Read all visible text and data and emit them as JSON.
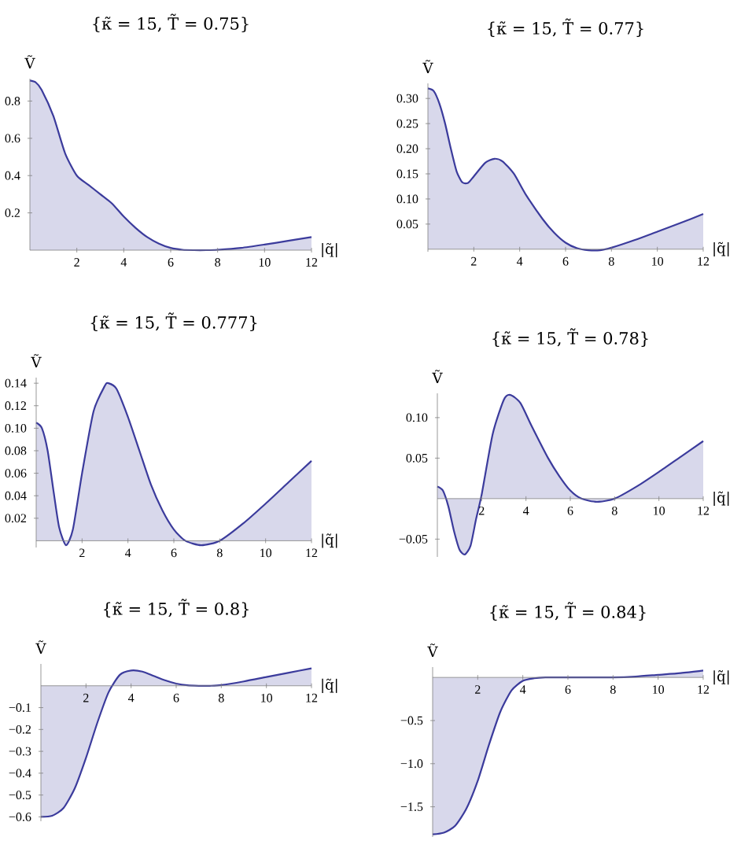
{
  "chart_data": [
    {
      "type": "area",
      "title": "{κ̃ = 15, T̃ = 0.75}",
      "xlabel": "|q̃|",
      "ylabel": "Ṽ",
      "color": "#3b3b9c",
      "xlim": [
        0,
        12
      ],
      "ylim": [
        0,
        0.92
      ],
      "xticks": [
        2,
        4,
        6,
        8,
        10,
        12
      ],
      "yticks": [
        0.2,
        0.4,
        0.6,
        0.8
      ],
      "x": [
        0,
        0.25,
        0.5,
        1,
        1.5,
        2,
        2.5,
        3,
        3.5,
        4,
        4.5,
        5,
        5.5,
        6,
        6.5,
        7,
        7.5,
        8,
        9,
        10,
        11,
        12
      ],
      "values": [
        0.91,
        0.9,
        0.86,
        0.72,
        0.52,
        0.4,
        0.35,
        0.3,
        0.25,
        0.18,
        0.12,
        0.07,
        0.035,
        0.012,
        0.002,
        0,
        0,
        0.002,
        0.012,
        0.03,
        0.05,
        0.07
      ]
    },
    {
      "type": "area",
      "title": "{κ̃ = 15, T̃ = 0.77}",
      "xlabel": "|q̃|",
      "ylabel": "Ṽ",
      "color": "#3b3b9c",
      "xlim": [
        0,
        12
      ],
      "ylim": [
        -0.005,
        0.33
      ],
      "xticks": [
        2,
        4,
        6,
        8,
        10,
        12
      ],
      "yticks": [
        0.05,
        {
          "value": 0.1,
          "label": "0.10"
        },
        0.15,
        {
          "value": 0.2,
          "label": "0.20"
        },
        0.25,
        {
          "value": 0.3,
          "label": "0.30"
        }
      ],
      "x": [
        0,
        0.25,
        0.5,
        0.75,
        1,
        1.25,
        1.5,
        1.75,
        2,
        2.5,
        2.9,
        3.25,
        3.75,
        4.25,
        5,
        5.5,
        6,
        6.5,
        7,
        7.5,
        8,
        9,
        10,
        11,
        12
      ],
      "values": [
        0.32,
        0.315,
        0.29,
        0.25,
        0.2,
        0.155,
        0.133,
        0.132,
        0.145,
        0.172,
        0.18,
        0.175,
        0.15,
        0.11,
        0.06,
        0.033,
        0.013,
        0.002,
        -0.002,
        -0.002,
        0.003,
        0.018,
        0.035,
        0.052,
        0.07
      ]
    },
    {
      "type": "area",
      "title": "{κ̃ = 15, T̃ = 0.777}",
      "xlabel": "|q̃|",
      "ylabel": "Ṽ",
      "color": "#3b3b9c",
      "xlim": [
        0,
        12
      ],
      "ylim": [
        -0.006,
        0.145
      ],
      "xticks": [
        2,
        4,
        6,
        8,
        10,
        12
      ],
      "yticks": [
        0.02,
        0.04,
        0.06,
        0.08,
        {
          "value": 0.1,
          "label": "0.10"
        },
        0.12,
        0.14
      ],
      "x": [
        0,
        0.25,
        0.5,
        0.75,
        1,
        1.3,
        1.6,
        2,
        2.5,
        3,
        3.15,
        3.5,
        4,
        4.5,
        5,
        5.5,
        6,
        6.5,
        7.2,
        8,
        9,
        10,
        11,
        12
      ],
      "values": [
        0.105,
        0.1,
        0.08,
        0.045,
        0.012,
        -0.004,
        0.01,
        0.06,
        0.115,
        0.138,
        0.14,
        0.135,
        0.11,
        0.08,
        0.05,
        0.027,
        0.01,
        0,
        -0.004,
        0,
        0.015,
        0.033,
        0.052,
        0.071
      ]
    },
    {
      "type": "area",
      "title": "{κ̃ = 15, T̃ = 0.78}",
      "xlabel": "|q̃|",
      "ylabel": "Ṽ",
      "color": "#3b3b9c",
      "xlim": [
        0,
        12
      ],
      "ylim": [
        -0.072,
        0.13
      ],
      "xticks": [
        2,
        4,
        6,
        8,
        10,
        12
      ],
      "yticks": [
        {
          "value": -0.05,
          "label": "−0.05"
        },
        0.05,
        {
          "value": 0.1,
          "label": "0.10"
        }
      ],
      "x": [
        0,
        0.25,
        0.5,
        0.75,
        1,
        1.24,
        1.5,
        1.75,
        2,
        2.5,
        3,
        3.3,
        3.75,
        4.25,
        5,
        5.5,
        6,
        6.5,
        7.2,
        8,
        9,
        10,
        11,
        12
      ],
      "values": [
        0.015,
        0.01,
        -0.01,
        -0.04,
        -0.063,
        -0.069,
        -0.058,
        -0.025,
        0.005,
        0.08,
        0.122,
        0.128,
        0.118,
        0.09,
        0.05,
        0.028,
        0.01,
        0,
        -0.004,
        0,
        0.015,
        0.033,
        0.052,
        0.071
      ]
    },
    {
      "type": "area",
      "title": "{κ̃ = 15, T̃ = 0.8}",
      "xlabel": "|q̃|",
      "ylabel": "Ṽ",
      "color": "#3b3b9c",
      "xlim": [
        0,
        12
      ],
      "ylim": [
        -0.62,
        0.1
      ],
      "xticks": [
        2,
        4,
        6,
        8,
        10,
        12
      ],
      "yticks": [
        {
          "value": -0.6,
          "label": "−0.6"
        },
        {
          "value": -0.5,
          "label": "−0.5"
        },
        {
          "value": -0.4,
          "label": "−0.4"
        },
        {
          "value": -0.3,
          "label": "−0.3"
        },
        {
          "value": -0.2,
          "label": "−0.2"
        },
        {
          "value": -0.1,
          "label": "−0.1"
        }
      ],
      "x": [
        0,
        0.5,
        1,
        1.5,
        2,
        2.5,
        3,
        3.5,
        4,
        4.5,
        5,
        5.5,
        6,
        6.5,
        7,
        7.5,
        8,
        9,
        10,
        11,
        12
      ],
      "values": [
        -0.6,
        -0.595,
        -0.56,
        -0.47,
        -0.33,
        -0.17,
        -0.03,
        0.05,
        0.07,
        0.065,
        0.045,
        0.025,
        0.01,
        0.002,
        0,
        0,
        0.003,
        0.02,
        0.04,
        0.06,
        0.08
      ]
    },
    {
      "type": "area",
      "title": "{κ̃ = 15, T̃ = 0.84}",
      "xlabel": "|q̃|",
      "ylabel": "Ṽ",
      "color": "#3b3b9c",
      "xlim": [
        0,
        12
      ],
      "ylim": [
        -1.85,
        0.12
      ],
      "xticks": [
        2,
        4,
        6,
        8,
        10,
        12
      ],
      "yticks": [
        {
          "value": -1.5,
          "label": "−1.5"
        },
        {
          "value": -1.0,
          "label": "−1.0"
        },
        {
          "value": -0.5,
          "label": "−0.5"
        }
      ],
      "x": [
        0,
        0.5,
        1,
        1.5,
        2,
        2.5,
        3,
        3.5,
        4,
        4.5,
        5,
        6,
        7,
        8,
        9,
        10,
        11,
        12
      ],
      "values": [
        -1.82,
        -1.8,
        -1.72,
        -1.52,
        -1.2,
        -0.78,
        -0.4,
        -0.15,
        -0.04,
        -0.01,
        0,
        0,
        0,
        0,
        0.01,
        0.03,
        0.05,
        0.08
      ]
    }
  ]
}
